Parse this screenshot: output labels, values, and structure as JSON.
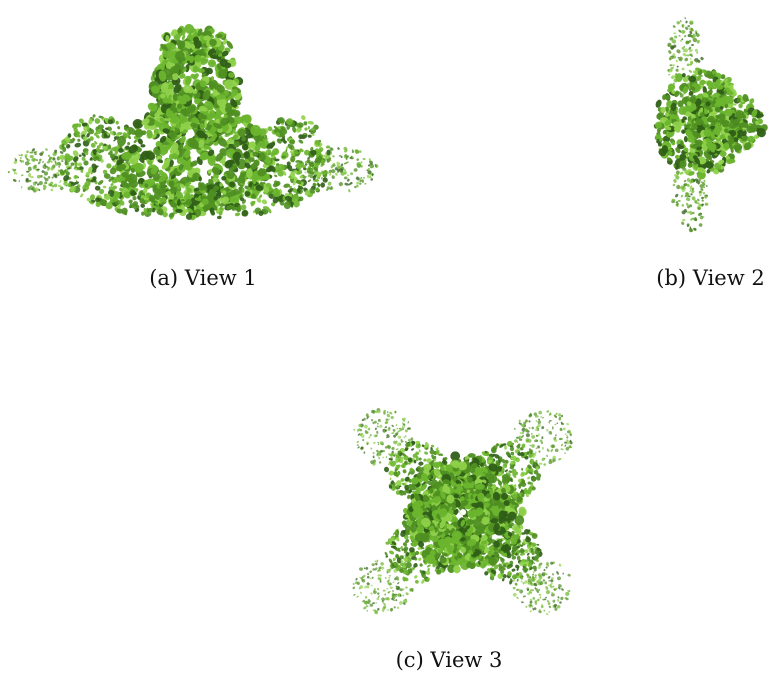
{
  "figure": {
    "colors": {
      "dark": "#2f5f17",
      "mid": "#4f8f22",
      "light": "#6cb52e",
      "highlight": "#8fd14a"
    },
    "panels": [
      {
        "id": "a",
        "caption": "(a) View 1"
      },
      {
        "id": "b",
        "caption": "(b) View 2"
      },
      {
        "id": "c",
        "caption": "(c) View 3"
      }
    ]
  }
}
